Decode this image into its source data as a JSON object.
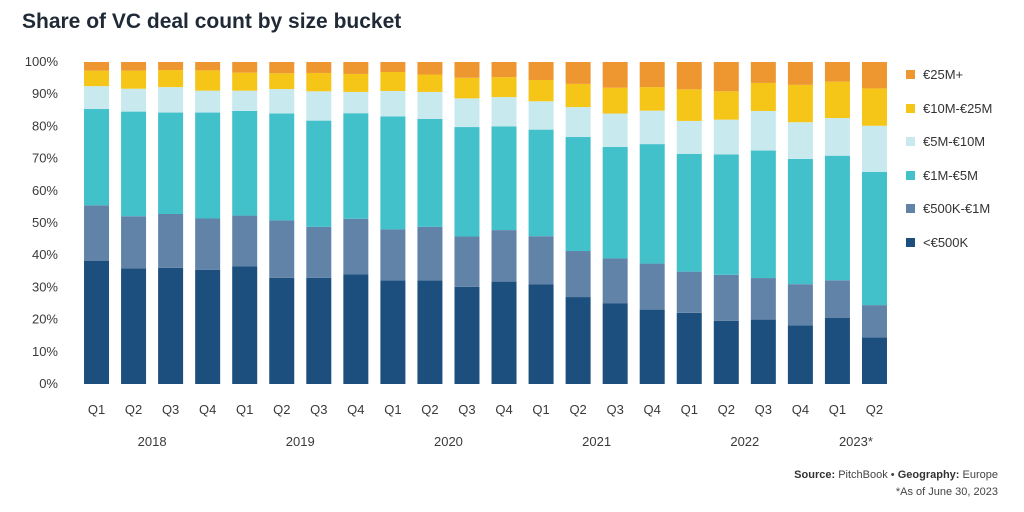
{
  "chart_data": {
    "type": "bar",
    "stacked": true,
    "title": "Share of VC deal count by size bucket",
    "ylim": [
      0,
      100
    ],
    "yticks": [
      "0%",
      "10%",
      "20%",
      "30%",
      "40%",
      "50%",
      "60%",
      "70%",
      "80%",
      "90%",
      "100%"
    ],
    "categories": [
      "Q1",
      "Q2",
      "Q3",
      "Q4",
      "Q1",
      "Q2",
      "Q3",
      "Q4",
      "Q1",
      "Q2",
      "Q3",
      "Q4",
      "Q1",
      "Q2",
      "Q3",
      "Q4",
      "Q1",
      "Q2",
      "Q3",
      "Q4",
      "Q1",
      "Q2"
    ],
    "years": [
      {
        "label": "2018",
        "start": 0,
        "end": 3
      },
      {
        "label": "2019",
        "start": 4,
        "end": 7
      },
      {
        "label": "2020",
        "start": 8,
        "end": 11
      },
      {
        "label": "2021",
        "start": 12,
        "end": 15
      },
      {
        "label": "2022",
        "start": 16,
        "end": 19
      },
      {
        "label": "2023*",
        "start": 20,
        "end": 21
      }
    ],
    "series": [
      {
        "name": "<€500K",
        "color": "#1c4f7e",
        "values": [
          38.2,
          35.9,
          36.1,
          35.5,
          36.5,
          33.0,
          33.0,
          34.1,
          32.2,
          32.2,
          30.2,
          31.8,
          31.0,
          27.0,
          25.0,
          23.1,
          22.1,
          19.6,
          20.0,
          18.2,
          20.6,
          14.5
        ]
      },
      {
        "name": "€500K-€1M",
        "color": "#6283a8",
        "values": [
          17.3,
          16.2,
          16.7,
          15.9,
          15.8,
          17.8,
          15.8,
          17.2,
          15.8,
          16.6,
          15.6,
          16.0,
          14.9,
          14.3,
          14.0,
          14.3,
          12.8,
          14.3,
          12.9,
          12.8,
          11.6,
          10.0
        ]
      },
      {
        "name": "€1M-€5M",
        "color": "#42c1cb",
        "values": [
          29.9,
          32.5,
          31.5,
          32.9,
          32.5,
          33.2,
          33.0,
          32.8,
          35.1,
          33.5,
          34.0,
          32.2,
          33.1,
          35.4,
          34.6,
          37.1,
          36.6,
          37.4,
          39.6,
          38.9,
          38.7,
          41.4
        ]
      },
      {
        "name": "€5M-€10M",
        "color": "#c8eaef",
        "values": [
          7.1,
          7.1,
          7.9,
          6.8,
          6.3,
          7.6,
          9.1,
          6.6,
          7.9,
          8.4,
          8.9,
          9.1,
          8.8,
          9.3,
          10.4,
          10.4,
          10.2,
          10.8,
          12.3,
          11.4,
          11.7,
          14.3
        ]
      },
      {
        "name": "€10M-€25M",
        "color": "#f5c518",
        "values": [
          4.8,
          5.6,
          5.3,
          6.3,
          5.6,
          4.9,
          5.7,
          5.6,
          5.9,
          5.4,
          6.4,
          6.2,
          6.6,
          7.2,
          8.0,
          7.3,
          9.8,
          8.8,
          8.7,
          11.6,
          11.3,
          11.6
        ]
      },
      {
        "name": "€25M+",
        "color": "#ee9731",
        "values": [
          2.7,
          2.7,
          2.5,
          2.6,
          3.3,
          3.5,
          3.4,
          3.7,
          3.1,
          3.9,
          4.9,
          4.7,
          5.6,
          6.8,
          8.0,
          7.8,
          8.5,
          9.1,
          6.5,
          7.1,
          6.1,
          8.2
        ]
      }
    ],
    "legend_position": "right",
    "grid": false
  },
  "source_label": "Source:",
  "source_value": "PitchBook",
  "separator": "•",
  "geography_label": "Geography:",
  "geography_value": "Europe",
  "note": "*As of June 30, 2023"
}
